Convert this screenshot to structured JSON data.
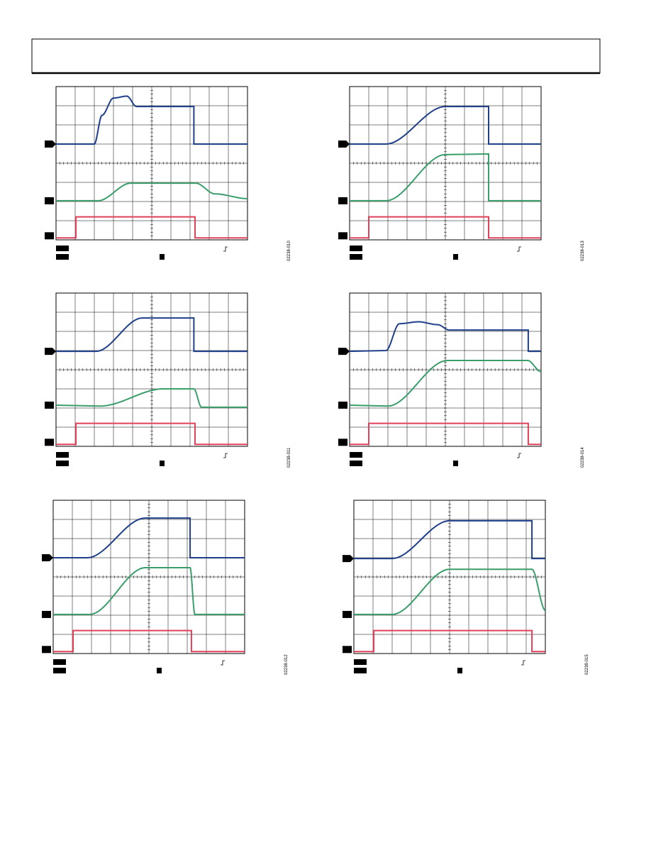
{
  "figures": [
    {
      "id": "02238-010"
    },
    {
      "id": "02238-013"
    },
    {
      "id": "02238-011"
    },
    {
      "id": "02238-014"
    },
    {
      "id": "02238-012"
    },
    {
      "id": "02238-015"
    }
  ]
}
